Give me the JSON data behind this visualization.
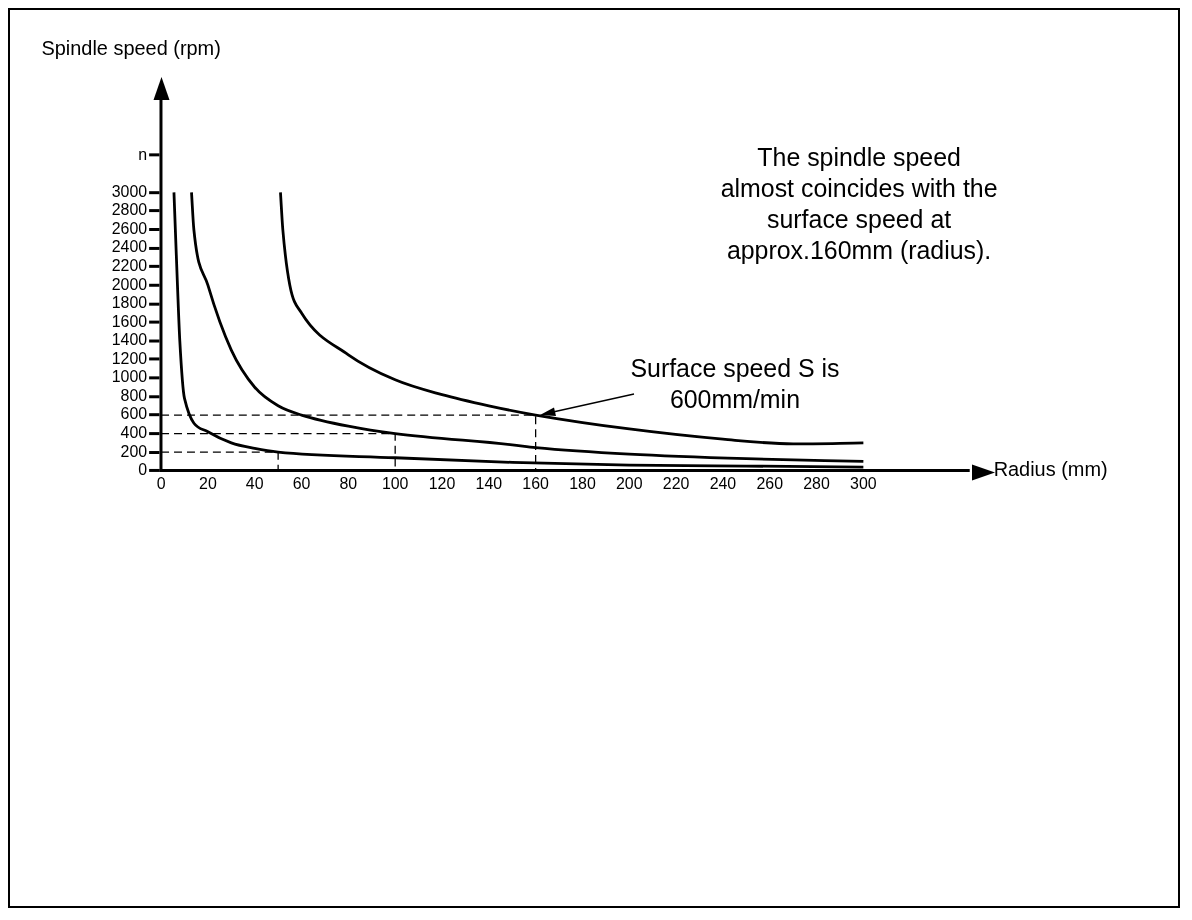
{
  "chart_data": {
    "type": "line",
    "xlabel": "Radius (mm)",
    "ylabel": "Spindle speed (rpm)",
    "xlim": [
      0,
      345
    ],
    "ylim": [
      0,
      4000
    ],
    "xticks": [
      0,
      20,
      40,
      60,
      80,
      100,
      120,
      140,
      160,
      180,
      200,
      220,
      240,
      260,
      280,
      300
    ],
    "yticks": [
      0,
      200,
      400,
      600,
      800,
      1000,
      1200,
      1400,
      1600,
      1800,
      2000,
      2200,
      2400,
      2600,
      2800,
      3000,
      {
        "value": 3400,
        "label": "n"
      }
    ],
    "grid": false,
    "legend": false,
    "marker": "none",
    "annotations": [
      "The spindle speed almost coincides with the surface speed at approx.160mm (radius).",
      "Surface speed S is 600mm/min"
    ],
    "series": [
      {
        "color": "#000000",
        "line_style": "solid",
        "x": [
          5.5,
          7,
          8,
          10,
          20,
          30,
          40,
          50,
          100,
          150,
          200,
          250,
          300
        ],
        "values": [
          3000,
          2000,
          1400,
          780,
          420,
          300,
          240,
          200,
          140,
          90,
          60,
          50,
          40
        ]
      },
      {
        "color": "#000000",
        "line_style": "solid",
        "x": [
          13,
          14,
          20,
          30,
          40,
          50,
          60,
          80,
          100,
          150,
          160,
          200,
          250,
          300
        ],
        "values": [
          3000,
          2600,
          2000,
          1300,
          900,
          700,
          600,
          480,
          400,
          280,
          250,
          180,
          130,
          100
        ]
      },
      {
        "color": "#000000",
        "line_style": "solid",
        "x": [
          51,
          52,
          55,
          60,
          80,
          100,
          120,
          140,
          160,
          200,
          240,
          270,
          300
        ],
        "values": [
          3000,
          2600,
          2000,
          1700,
          1250,
          980,
          820,
          700,
          600,
          450,
          340,
          290,
          300
        ]
      },
      {
        "color": "#000000",
        "line_style": "dashed",
        "x": [
          0,
          50,
          50
        ],
        "values": [
          200,
          200,
          0
        ]
      },
      {
        "color": "#000000",
        "line_style": "dashed",
        "x": [
          0,
          100,
          100
        ],
        "values": [
          400,
          400,
          0
        ]
      },
      {
        "color": "#000000",
        "line_style": "dashed",
        "x": [
          0,
          160,
          160
        ],
        "values": [
          600,
          600,
          0
        ]
      }
    ]
  }
}
